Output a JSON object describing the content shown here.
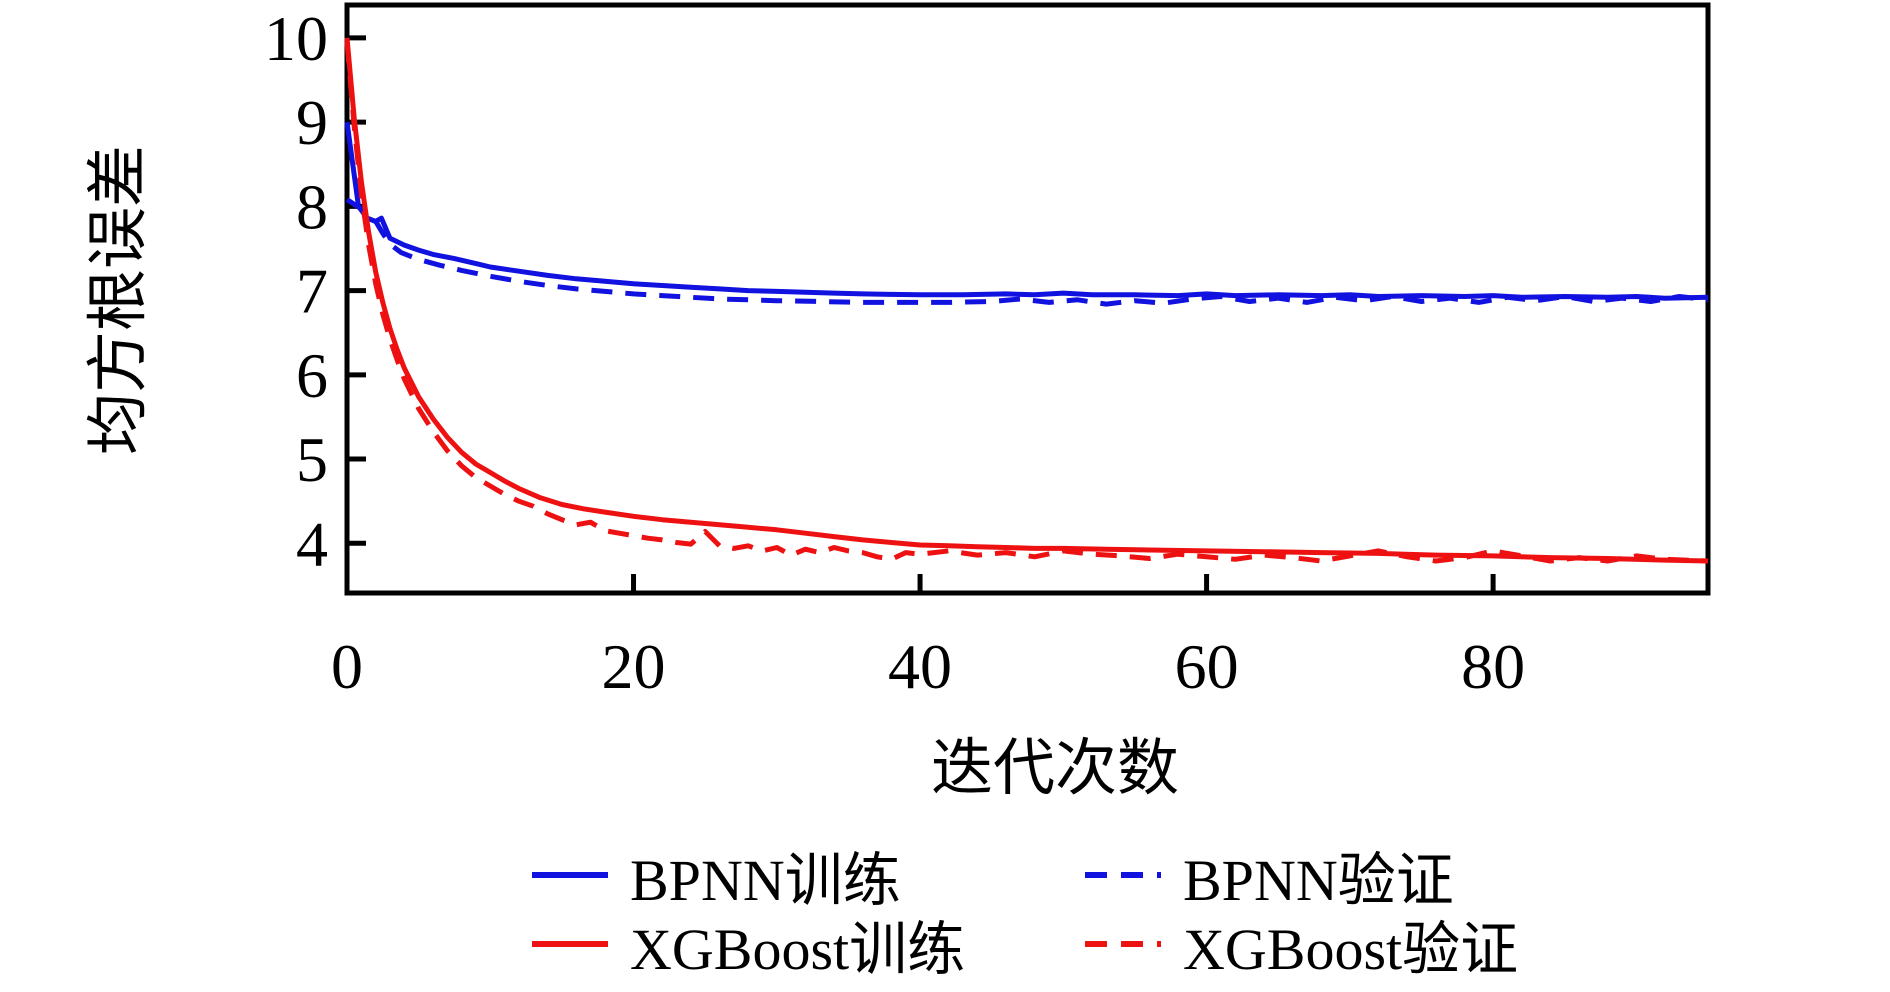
{
  "chart_data": {
    "type": "line",
    "title": "",
    "xlabel": "迭代次数",
    "ylabel": "均方根误差",
    "xlim": [
      0,
      95
    ],
    "ylim": [
      3.41,
      10.39
    ],
    "xticks": [
      0,
      20,
      40,
      60,
      80
    ],
    "yticks": [
      4,
      5,
      6,
      7,
      8,
      9,
      10
    ],
    "grid": false,
    "legend_position": "below-center",
    "axis_color": "#000000",
    "series": [
      {
        "name": "BPNN训练",
        "color": "#1111e0",
        "style": "solid",
        "points": [
          [
            0,
            9.0
          ],
          [
            0.8,
            8.0
          ],
          [
            1.4,
            7.86
          ],
          [
            2,
            7.82
          ],
          [
            2.4,
            7.86
          ],
          [
            3,
            7.62
          ],
          [
            4,
            7.54
          ],
          [
            5,
            7.48
          ],
          [
            6,
            7.43
          ],
          [
            7.5,
            7.38
          ],
          [
            9,
            7.32
          ],
          [
            10,
            7.28
          ],
          [
            12,
            7.23
          ],
          [
            14,
            7.18
          ],
          [
            16,
            7.14
          ],
          [
            18,
            7.11
          ],
          [
            20,
            7.08
          ],
          [
            22,
            7.06
          ],
          [
            24,
            7.04
          ],
          [
            26,
            7.02
          ],
          [
            28,
            7.0
          ],
          [
            30,
            6.99
          ],
          [
            32,
            6.98
          ],
          [
            34,
            6.97
          ],
          [
            36,
            6.96
          ],
          [
            38,
            6.955
          ],
          [
            40,
            6.95
          ],
          [
            43,
            6.95
          ],
          [
            46,
            6.96
          ],
          [
            48,
            6.95
          ],
          [
            50,
            6.97
          ],
          [
            52,
            6.95
          ],
          [
            55,
            6.95
          ],
          [
            58,
            6.94
          ],
          [
            60,
            6.96
          ],
          [
            62,
            6.94
          ],
          [
            65,
            6.95
          ],
          [
            68,
            6.94
          ],
          [
            70,
            6.95
          ],
          [
            72,
            6.93
          ],
          [
            75,
            6.94
          ],
          [
            78,
            6.93
          ],
          [
            80,
            6.94
          ],
          [
            82,
            6.92
          ],
          [
            85,
            6.93
          ],
          [
            88,
            6.92
          ],
          [
            90,
            6.93
          ],
          [
            92,
            6.91
          ],
          [
            95,
            6.92
          ]
        ]
      },
      {
        "name": "BPNN验证",
        "color": "#1111e0",
        "style": "dashed",
        "points": [
          [
            0,
            8.08
          ],
          [
            1,
            7.97
          ],
          [
            1.8,
            7.88
          ],
          [
            2.5,
            7.68
          ],
          [
            3,
            7.55
          ],
          [
            3.8,
            7.45
          ],
          [
            5,
            7.37
          ],
          [
            6.5,
            7.3
          ],
          [
            8,
            7.24
          ],
          [
            10,
            7.17
          ],
          [
            12,
            7.11
          ],
          [
            14,
            7.06
          ],
          [
            16,
            7.02
          ],
          [
            18,
            6.99
          ],
          [
            20,
            6.96
          ],
          [
            22,
            6.94
          ],
          [
            24,
            6.92
          ],
          [
            26,
            6.9
          ],
          [
            28,
            6.89
          ],
          [
            30,
            6.88
          ],
          [
            33,
            6.87
          ],
          [
            36,
            6.86
          ],
          [
            39,
            6.86
          ],
          [
            42,
            6.86
          ],
          [
            45,
            6.87
          ],
          [
            47,
            6.9
          ],
          [
            49,
            6.86
          ],
          [
            51,
            6.89
          ],
          [
            53,
            6.84
          ],
          [
            55,
            6.88
          ],
          [
            57,
            6.85
          ],
          [
            59,
            6.9
          ],
          [
            61,
            6.93
          ],
          [
            63,
            6.87
          ],
          [
            65,
            6.91
          ],
          [
            67,
            6.86
          ],
          [
            69,
            6.92
          ],
          [
            71,
            6.88
          ],
          [
            73,
            6.93
          ],
          [
            75,
            6.87
          ],
          [
            77,
            6.91
          ],
          [
            79,
            6.86
          ],
          [
            81,
            6.92
          ],
          [
            83,
            6.88
          ],
          [
            85,
            6.93
          ],
          [
            87,
            6.87
          ],
          [
            89,
            6.91
          ],
          [
            91,
            6.87
          ],
          [
            93,
            6.93
          ],
          [
            95,
            6.89
          ]
        ]
      },
      {
        "name": "XGBoost训练",
        "color": "#ee1111",
        "style": "solid",
        "points": [
          [
            0,
            10.0
          ],
          [
            0.5,
            9.05
          ],
          [
            1,
            8.3
          ],
          [
            1.5,
            7.7
          ],
          [
            2,
            7.22
          ],
          [
            2.5,
            6.86
          ],
          [
            3,
            6.55
          ],
          [
            3.5,
            6.3
          ],
          [
            4,
            6.08
          ],
          [
            5,
            5.74
          ],
          [
            6,
            5.48
          ],
          [
            7,
            5.26
          ],
          [
            8,
            5.08
          ],
          [
            9,
            4.94
          ],
          [
            10,
            4.84
          ],
          [
            11,
            4.74
          ],
          [
            12,
            4.65
          ],
          [
            13.5,
            4.54
          ],
          [
            15,
            4.46
          ],
          [
            16.5,
            4.41
          ],
          [
            18,
            4.37
          ],
          [
            20,
            4.32
          ],
          [
            22,
            4.28
          ],
          [
            24,
            4.25
          ],
          [
            26,
            4.22
          ],
          [
            28,
            4.19
          ],
          [
            30,
            4.16
          ],
          [
            32,
            4.12
          ],
          [
            34,
            4.08
          ],
          [
            36,
            4.04
          ],
          [
            38,
            4.01
          ],
          [
            40,
            3.98
          ],
          [
            42,
            3.97
          ],
          [
            44,
            3.96
          ],
          [
            46,
            3.95
          ],
          [
            48,
            3.94
          ],
          [
            50,
            3.94
          ],
          [
            53,
            3.93
          ],
          [
            56,
            3.92
          ],
          [
            60,
            3.91
          ],
          [
            64,
            3.9
          ],
          [
            68,
            3.89
          ],
          [
            72,
            3.88
          ],
          [
            76,
            3.86
          ],
          [
            80,
            3.85
          ],
          [
            84,
            3.83
          ],
          [
            88,
            3.82
          ],
          [
            92,
            3.8
          ],
          [
            95,
            3.79
          ]
        ]
      },
      {
        "name": "XGBoost验证",
        "color": "#ee1111",
        "style": "dashed",
        "points": [
          [
            0,
            9.95
          ],
          [
            0.5,
            8.95
          ],
          [
            1,
            8.15
          ],
          [
            1.5,
            7.55
          ],
          [
            2,
            7.08
          ],
          [
            2.5,
            6.72
          ],
          [
            3,
            6.42
          ],
          [
            3.5,
            6.18
          ],
          [
            4,
            5.95
          ],
          [
            5,
            5.6
          ],
          [
            6,
            5.33
          ],
          [
            7,
            5.1
          ],
          [
            8,
            4.92
          ],
          [
            9,
            4.78
          ],
          [
            10,
            4.68
          ],
          [
            11,
            4.58
          ],
          [
            12,
            4.5
          ],
          [
            13,
            4.44
          ],
          [
            14,
            4.35
          ],
          [
            15,
            4.28
          ],
          [
            16,
            4.22
          ],
          [
            17,
            4.25
          ],
          [
            18,
            4.15
          ],
          [
            19,
            4.12
          ],
          [
            20,
            4.09
          ],
          [
            21,
            4.06
          ],
          [
            22,
            4.04
          ],
          [
            23,
            4.01
          ],
          [
            24,
            3.99
          ],
          [
            25,
            4.14
          ],
          [
            26,
            3.97
          ],
          [
            27,
            3.94
          ],
          [
            28,
            3.97
          ],
          [
            29,
            3.91
          ],
          [
            30,
            3.95
          ],
          [
            31,
            3.86
          ],
          [
            32,
            3.93
          ],
          [
            33,
            3.89
          ],
          [
            34,
            3.95
          ],
          [
            35,
            3.91
          ],
          [
            36,
            3.89
          ],
          [
            37,
            3.84
          ],
          [
            38,
            3.81
          ],
          [
            39,
            3.89
          ],
          [
            40,
            3.87
          ],
          [
            42,
            3.91
          ],
          [
            44,
            3.86
          ],
          [
            46,
            3.89
          ],
          [
            48,
            3.84
          ],
          [
            50,
            3.91
          ],
          [
            52,
            3.87
          ],
          [
            54,
            3.85
          ],
          [
            56,
            3.82
          ],
          [
            58,
            3.87
          ],
          [
            60,
            3.84
          ],
          [
            62,
            3.81
          ],
          [
            64,
            3.86
          ],
          [
            66,
            3.83
          ],
          [
            68,
            3.79
          ],
          [
            70,
            3.85
          ],
          [
            72,
            3.91
          ],
          [
            74,
            3.84
          ],
          [
            76,
            3.79
          ],
          [
            78,
            3.83
          ],
          [
            80,
            3.91
          ],
          [
            82,
            3.85
          ],
          [
            84,
            3.79
          ],
          [
            86,
            3.83
          ],
          [
            88,
            3.79
          ],
          [
            90,
            3.85
          ],
          [
            92,
            3.81
          ],
          [
            95,
            3.79
          ]
        ]
      }
    ]
  }
}
